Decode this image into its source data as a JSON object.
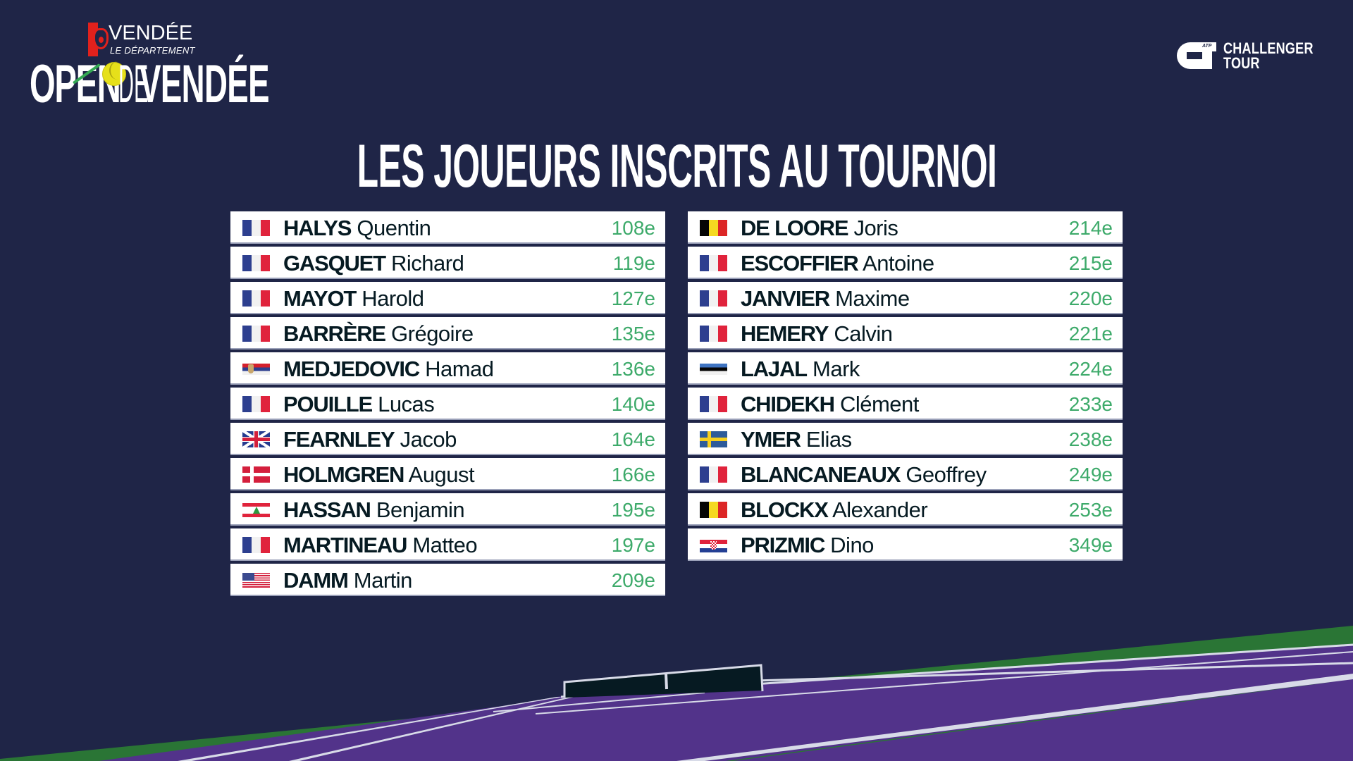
{
  "branding": {
    "sponsor_name": "VENDÉE",
    "sponsor_subtitle": "LE DÉPARTEMENT",
    "event_open": "OPEN",
    "event_de": "DE",
    "event_place": "VENDÉE",
    "tour_line1": "CHALLENGER",
    "tour_line2": "TOUR",
    "tour_atp": "ATP"
  },
  "title": "LES JOUEURS INSCRITS AU TOURNOI",
  "colors": {
    "background": "#1f2547",
    "row_background": "#ffffff",
    "name_text": "#061a22",
    "rank_text": "#3daa6a",
    "court_purple": "#52338a",
    "court_green": "#2a7535",
    "net": "#061a22"
  },
  "players_left": [
    {
      "flag": "fr",
      "country": "France",
      "last_name": "HALYS",
      "first_name": "Quentin",
      "rank": "108e"
    },
    {
      "flag": "fr",
      "country": "France",
      "last_name": "GASQUET",
      "first_name": "Richard",
      "rank": "119e"
    },
    {
      "flag": "fr",
      "country": "France",
      "last_name": "MAYOT",
      "first_name": "Harold",
      "rank": "127e"
    },
    {
      "flag": "fr",
      "country": "France",
      "last_name": "BARRÈRE",
      "first_name": "Grégoire",
      "rank": "135e"
    },
    {
      "flag": "rs",
      "country": "Serbia",
      "last_name": "MEDJEDOVIC",
      "first_name": "Hamad",
      "rank": "136e"
    },
    {
      "flag": "fr",
      "country": "France",
      "last_name": "POUILLE",
      "first_name": "Lucas",
      "rank": "140e"
    },
    {
      "flag": "gb",
      "country": "Great Britain",
      "last_name": "FEARNLEY",
      "first_name": "Jacob",
      "rank": "164e"
    },
    {
      "flag": "dk",
      "country": "Denmark",
      "last_name": "HOLMGREN",
      "first_name": "August",
      "rank": "166e"
    },
    {
      "flag": "lb",
      "country": "Lebanon",
      "last_name": "HASSAN",
      "first_name": "Benjamin",
      "rank": "195e"
    },
    {
      "flag": "fr",
      "country": "France",
      "last_name": "MARTINEAU",
      "first_name": "Matteo",
      "rank": "197e"
    },
    {
      "flag": "us",
      "country": "USA",
      "last_name": "DAMM",
      "first_name": "Martin",
      "rank": "209e"
    }
  ],
  "players_right": [
    {
      "flag": "be",
      "country": "Belgium",
      "last_name": "DE LOORE",
      "first_name": "Joris",
      "rank": "214e"
    },
    {
      "flag": "fr",
      "country": "France",
      "last_name": "ESCOFFIER",
      "first_name": "Antoine",
      "rank": "215e"
    },
    {
      "flag": "fr",
      "country": "France",
      "last_name": "JANVIER",
      "first_name": "Maxime",
      "rank": "220e"
    },
    {
      "flag": "fr",
      "country": "France",
      "last_name": "HEMERY",
      "first_name": "Calvin",
      "rank": "221e"
    },
    {
      "flag": "ee",
      "country": "Estonia",
      "last_name": "LAJAL",
      "first_name": "Mark",
      "rank": "224e"
    },
    {
      "flag": "fr",
      "country": "France",
      "last_name": "CHIDEKH",
      "first_name": "Clément",
      "rank": "233e"
    },
    {
      "flag": "se",
      "country": "Sweden",
      "last_name": "YMER",
      "first_name": "Elias",
      "rank": "238e"
    },
    {
      "flag": "fr",
      "country": "France",
      "last_name": "BLANCANEAUX",
      "first_name": "Geoffrey",
      "rank": "249e"
    },
    {
      "flag": "be",
      "country": "Belgium",
      "last_name": "BLOCKX",
      "first_name": "Alexander",
      "rank": "253e"
    },
    {
      "flag": "hr",
      "country": "Croatia",
      "last_name": "PRIZMIC",
      "first_name": "Dino",
      "rank": "349e"
    }
  ]
}
